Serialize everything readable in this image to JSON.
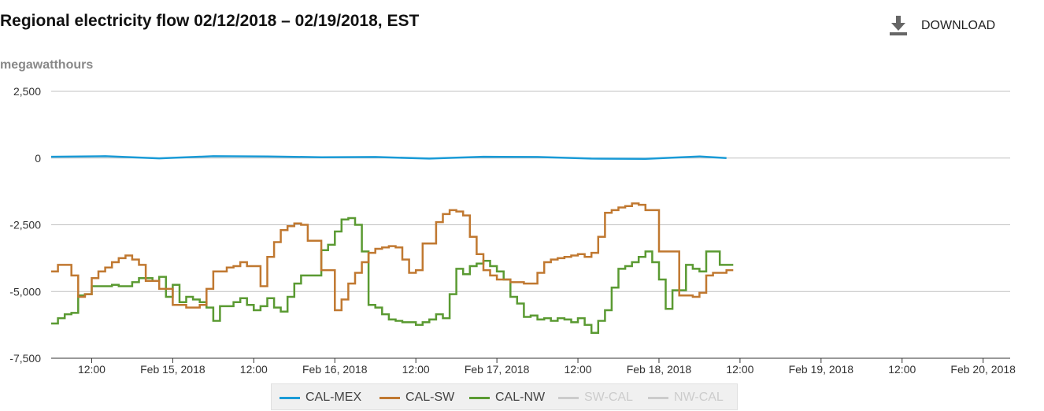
{
  "header": {
    "title": "Regional electricity flow 02/12/2018 – 02/19/2018, EST",
    "download_label": "DOWNLOAD",
    "download_icon": "download-icon"
  },
  "chart_data": {
    "type": "line",
    "step": true,
    "title": "Regional electricity flow 02/12/2018 – 02/19/2018, EST",
    "ylabel": "megawatthours",
    "xlabel": "",
    "ylim": [
      -7500,
      2500
    ],
    "yticks": [
      2500,
      0,
      -2500,
      -5000,
      -7500
    ],
    "ytick_labels": [
      "2,500",
      "0",
      "-2,500",
      "-5,000",
      "-7,500"
    ],
    "xlim": [
      "2018-02-14T06:00",
      "2018-02-20T04:00"
    ],
    "xticks": [
      "2018-02-14T12:00",
      "2018-02-15T00:00",
      "2018-02-15T12:00",
      "2018-02-16T00:00",
      "2018-02-16T12:00",
      "2018-02-17T00:00",
      "2018-02-17T12:00",
      "2018-02-18T00:00",
      "2018-02-18T12:00",
      "2018-02-19T00:00",
      "2018-02-19T12:00",
      "2018-02-20T00:00"
    ],
    "xtick_labels": [
      "12:00",
      "Feb 15, 2018",
      "12:00",
      "Feb 16, 2018",
      "12:00",
      "Feb 17, 2018",
      "12:00",
      "Feb 18, 2018",
      "12:00",
      "Feb 19, 2018",
      "12:00",
      "Feb 20, 2018"
    ],
    "grid": true,
    "legend_position": "bottom",
    "series": [
      {
        "name": "CAL-MEX",
        "color": "#1a9bd7",
        "visible": true,
        "step": false,
        "x": [
          "2018-02-14T06:00",
          "2018-02-14T14:00",
          "2018-02-14T22:00",
          "2018-02-15T06:00",
          "2018-02-15T14:00",
          "2018-02-15T22:00",
          "2018-02-16T06:00",
          "2018-02-16T14:00",
          "2018-02-16T22:00",
          "2018-02-17T06:00",
          "2018-02-17T14:00",
          "2018-02-17T22:00",
          "2018-02-18T06:00",
          "2018-02-18T10:00"
        ],
        "y": [
          50,
          70,
          -10,
          70,
          60,
          30,
          40,
          -20,
          50,
          40,
          -20,
          -30,
          60,
          0
        ]
      },
      {
        "name": "CAL-SW",
        "color": "#c07830",
        "visible": true,
        "step": true,
        "x": [
          "2018-02-14T06:00",
          "2018-02-14T07:00",
          "2018-02-14T09:00",
          "2018-02-14T10:00",
          "2018-02-14T11:00",
          "2018-02-14T12:00",
          "2018-02-14T13:00",
          "2018-02-14T14:00",
          "2018-02-14T15:00",
          "2018-02-14T16:00",
          "2018-02-14T17:00",
          "2018-02-14T18:00",
          "2018-02-14T19:00",
          "2018-02-14T20:00",
          "2018-02-14T22:00",
          "2018-02-15T00:00",
          "2018-02-15T02:00",
          "2018-02-15T04:00",
          "2018-02-15T05:00",
          "2018-02-15T06:00",
          "2018-02-15T08:00",
          "2018-02-15T09:00",
          "2018-02-15T10:00",
          "2018-02-15T11:00",
          "2018-02-15T13:00",
          "2018-02-15T14:00",
          "2018-02-15T15:00",
          "2018-02-15T16:00",
          "2018-02-15T17:00",
          "2018-02-15T18:00",
          "2018-02-15T19:00",
          "2018-02-15T20:00",
          "2018-02-15T22:00",
          "2018-02-16T00:00",
          "2018-02-16T01:00",
          "2018-02-16T02:00",
          "2018-02-16T03:00",
          "2018-02-16T04:00",
          "2018-02-16T05:00",
          "2018-02-16T06:00",
          "2018-02-16T07:00",
          "2018-02-16T08:00",
          "2018-02-16T09:00",
          "2018-02-16T10:00",
          "2018-02-16T11:00",
          "2018-02-16T12:00",
          "2018-02-16T13:00",
          "2018-02-16T15:00",
          "2018-02-16T16:00",
          "2018-02-16T17:00",
          "2018-02-16T18:00",
          "2018-02-16T19:00",
          "2018-02-16T20:00",
          "2018-02-16T21:00",
          "2018-02-16T22:00",
          "2018-02-16T23:00",
          "2018-02-17T00:00",
          "2018-02-17T02:00",
          "2018-02-17T04:00",
          "2018-02-17T06:00",
          "2018-02-17T07:00",
          "2018-02-17T08:00",
          "2018-02-17T09:00",
          "2018-02-17T10:00",
          "2018-02-17T11:00",
          "2018-02-17T12:00",
          "2018-02-17T13:00",
          "2018-02-17T14:00",
          "2018-02-17T15:00",
          "2018-02-17T16:00",
          "2018-02-17T17:00",
          "2018-02-17T18:00",
          "2018-02-17T19:00",
          "2018-02-17T20:00",
          "2018-02-17T21:00",
          "2018-02-17T22:00",
          "2018-02-18T00:00",
          "2018-02-18T03:00",
          "2018-02-18T05:00",
          "2018-02-18T06:00",
          "2018-02-18T07:00",
          "2018-02-18T08:00",
          "2018-02-18T10:00"
        ],
        "y": [
          -4250,
          -4000,
          -4400,
          -5200,
          -5100,
          -4500,
          -4250,
          -4100,
          -3900,
          -3750,
          -3650,
          -3800,
          -4000,
          -4600,
          -4900,
          -5500,
          -5600,
          -5500,
          -4900,
          -4250,
          -4100,
          -4050,
          -3900,
          -4050,
          -4800,
          -3700,
          -3150,
          -2700,
          -2550,
          -2450,
          -2500,
          -3100,
          -4200,
          -5700,
          -5300,
          -4700,
          -4300,
          -3900,
          -3550,
          -3400,
          -3350,
          -3300,
          -3350,
          -3800,
          -4300,
          -4200,
          -3200,
          -2400,
          -2100,
          -1950,
          -2000,
          -2150,
          -2950,
          -3600,
          -4200,
          -4400,
          -4550,
          -4650,
          -4700,
          -4300,
          -3900,
          -3800,
          -3750,
          -3700,
          -3650,
          -3600,
          -3700,
          -3550,
          -2950,
          -2050,
          -1950,
          -1850,
          -1800,
          -1700,
          -1750,
          -1950,
          -3500,
          -5150,
          -5200,
          -5050,
          -4400,
          -4300,
          -4200
        ]
      },
      {
        "name": "CAL-NW",
        "color": "#5a9a32",
        "visible": true,
        "step": true,
        "x": [
          "2018-02-14T06:00",
          "2018-02-14T07:00",
          "2018-02-14T08:00",
          "2018-02-14T09:00",
          "2018-02-14T10:00",
          "2018-02-14T11:00",
          "2018-02-14T12:00",
          "2018-02-14T15:00",
          "2018-02-14T16:00",
          "2018-02-14T18:00",
          "2018-02-14T19:00",
          "2018-02-14T21:00",
          "2018-02-14T22:00",
          "2018-02-14T23:00",
          "2018-02-15T00:00",
          "2018-02-15T01:00",
          "2018-02-15T02:00",
          "2018-02-15T03:00",
          "2018-02-15T04:00",
          "2018-02-15T05:00",
          "2018-02-15T06:00",
          "2018-02-15T07:00",
          "2018-02-15T09:00",
          "2018-02-15T10:00",
          "2018-02-15T11:00",
          "2018-02-15T12:00",
          "2018-02-15T13:00",
          "2018-02-15T14:00",
          "2018-02-15T15:00",
          "2018-02-15T16:00",
          "2018-02-15T17:00",
          "2018-02-15T18:00",
          "2018-02-15T19:00",
          "2018-02-15T22:00",
          "2018-02-15T23:00",
          "2018-02-16T00:00",
          "2018-02-16T01:00",
          "2018-02-16T02:00",
          "2018-02-16T03:00",
          "2018-02-16T04:00",
          "2018-02-16T05:00",
          "2018-02-16T06:00",
          "2018-02-16T07:00",
          "2018-02-16T08:00",
          "2018-02-16T09:00",
          "2018-02-16T10:00",
          "2018-02-16T12:00",
          "2018-02-16T13:00",
          "2018-02-16T14:00",
          "2018-02-16T15:00",
          "2018-02-16T16:00",
          "2018-02-16T17:00",
          "2018-02-16T18:00",
          "2018-02-16T19:00",
          "2018-02-16T20:00",
          "2018-02-16T21:00",
          "2018-02-16T22:00",
          "2018-02-16T23:00",
          "2018-02-17T00:00",
          "2018-02-17T01:00",
          "2018-02-17T02:00",
          "2018-02-17T03:00",
          "2018-02-17T04:00",
          "2018-02-17T05:00",
          "2018-02-17T06:00",
          "2018-02-17T07:00",
          "2018-02-17T08:00",
          "2018-02-17T09:00",
          "2018-02-17T10:00",
          "2018-02-17T11:00",
          "2018-02-17T12:00",
          "2018-02-17T13:00",
          "2018-02-17T14:00",
          "2018-02-17T15:00",
          "2018-02-17T16:00",
          "2018-02-17T17:00",
          "2018-02-17T18:00",
          "2018-02-17T19:00",
          "2018-02-17T20:00",
          "2018-02-17T21:00",
          "2018-02-17T22:00",
          "2018-02-17T23:00",
          "2018-02-18T00:00",
          "2018-02-18T01:00",
          "2018-02-18T02:00",
          "2018-02-18T04:00",
          "2018-02-18T05:00",
          "2018-02-18T06:00",
          "2018-02-18T07:00",
          "2018-02-18T09:00",
          "2018-02-18T10:00"
        ],
        "y": [
          -6200,
          -6000,
          -5850,
          -5800,
          -5150,
          -5100,
          -4800,
          -4750,
          -4800,
          -4650,
          -4500,
          -4600,
          -4450,
          -5200,
          -4750,
          -5400,
          -5200,
          -5300,
          -5400,
          -5600,
          -6100,
          -5550,
          -5400,
          -5250,
          -5500,
          -5700,
          -5550,
          -5250,
          -5600,
          -5750,
          -5200,
          -4700,
          -4400,
          -3450,
          -3250,
          -2750,
          -2300,
          -2250,
          -2500,
          -3500,
          -5500,
          -5600,
          -5850,
          -6050,
          -6100,
          -6150,
          -6250,
          -6150,
          -6050,
          -5850,
          -6000,
          -5100,
          -4150,
          -4350,
          -4050,
          -3950,
          -3850,
          -4050,
          -4250,
          -4550,
          -5200,
          -5450,
          -5950,
          -5900,
          -6050,
          -6000,
          -6100,
          -6000,
          -6050,
          -6150,
          -6000,
          -6250,
          -6550,
          -6100,
          -5700,
          -4850,
          -4150,
          -4050,
          -3900,
          -3700,
          -3500,
          -3900,
          -4550,
          -5650,
          -4950,
          -4000,
          -4150,
          -4250,
          -3500,
          -4000,
          -4000
        ]
      },
      {
        "name": "SW-CAL",
        "color": "#cccccc",
        "visible": false
      },
      {
        "name": "NW-CAL",
        "color": "#cccccc",
        "visible": false
      }
    ]
  }
}
